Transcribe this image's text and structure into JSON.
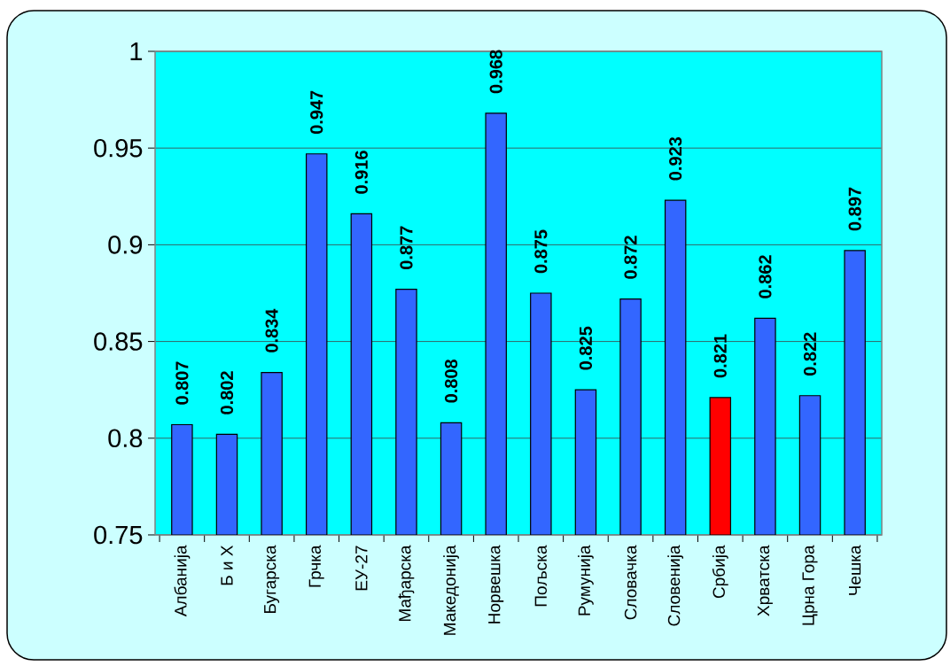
{
  "chart_data": {
    "type": "bar",
    "categories": [
      "Албанија",
      "Б и Х",
      "Бугарска",
      "Грчка",
      "ЕУ-27",
      "Мађарска",
      "Македонија",
      "Норвешка",
      "Пољска",
      "Румунија",
      "Словачка",
      "Словенија",
      "Србија",
      "Хрватска",
      "Црна Гора",
      "Чешка"
    ],
    "values": [
      0.807,
      0.802,
      0.834,
      0.947,
      0.916,
      0.877,
      0.808,
      0.968,
      0.875,
      0.825,
      0.872,
      0.923,
      0.821,
      0.862,
      0.822,
      0.897
    ],
    "colors": [
      "#3366ff",
      "#3366ff",
      "#3366ff",
      "#3366ff",
      "#3366ff",
      "#3366ff",
      "#3366ff",
      "#3366ff",
      "#3366ff",
      "#3366ff",
      "#3366ff",
      "#3366ff",
      "#ff0000",
      "#3366ff",
      "#3366ff",
      "#3366ff"
    ],
    "ylim": [
      0.75,
      1
    ],
    "yticks": [
      0.75,
      0.8,
      0.85,
      0.9,
      0.95,
      1
    ],
    "grid": "y",
    "data_labels": true
  }
}
